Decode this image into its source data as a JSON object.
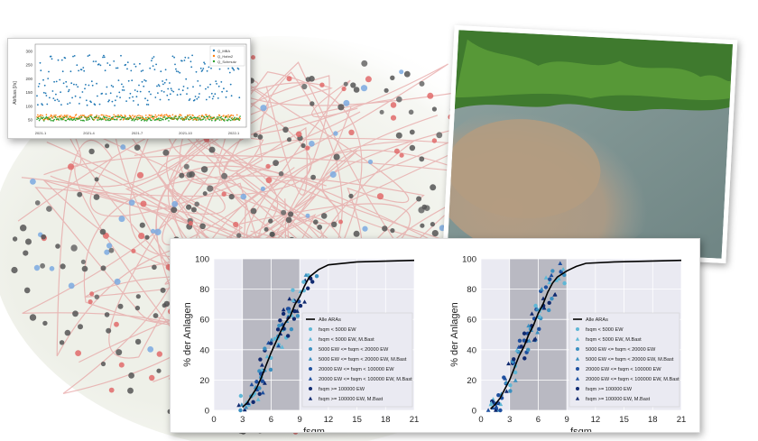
{
  "timeseries": {
    "ylabel": "Abfluss [l/s]",
    "yticks": [
      "300",
      "250",
      "200",
      "150",
      "100",
      "50"
    ],
    "xticks": [
      "2021-1",
      "2021-4",
      "2021-7",
      "2021-10",
      "2022-1"
    ],
    "legend": [
      "Q_MBA",
      "Q_Hahn2",
      "Q_Schmutz"
    ],
    "colors": {
      "series1": "#1f77b4",
      "series2": "#ff7f0e",
      "series3": "#2ca02c"
    }
  },
  "chart_data": [
    {
      "type": "line",
      "xlabel": "fsqm",
      "ylabel": "% der Anlagen",
      "xlim": [
        0,
        21
      ],
      "ylim": [
        0,
        100
      ],
      "xticks": [
        "0",
        "3",
        "6",
        "9",
        "12",
        "15",
        "18",
        "21"
      ],
      "yticks": [
        "0",
        "20",
        "40",
        "60",
        "80",
        "100"
      ],
      "shaded_x": [
        3,
        9
      ],
      "series": [
        {
          "name": "Alle ARAs",
          "x": [
            3,
            3.5,
            4,
            4.5,
            5,
            5.5,
            6,
            6.5,
            7,
            7.5,
            8,
            8.5,
            9,
            9.5,
            10,
            11,
            12,
            15,
            21
          ],
          "y": [
            2,
            5,
            10,
            15,
            22,
            30,
            38,
            45,
            52,
            58,
            62,
            70,
            75,
            82,
            88,
            93,
            96,
            98,
            99
          ]
        }
      ],
      "legend": [
        "Alle ARAs",
        "fsqm < 5000 EW",
        "fsqm < 5000 EW, M.Bast",
        "5000 EW <= fsqm < 20000 EW",
        "5000 EW <= fsqm < 20000 EW, M.Bast",
        "20000 EW <= fsqm < 100000 EW",
        "20000 EW <= fsqm < 100000 EW, M.Bast",
        "fsqm >= 100000 EW",
        "fsqm >= 100000 EW, M.Bast"
      ]
    },
    {
      "type": "line",
      "xlabel": "fsqm",
      "ylabel": "% der Anlagen",
      "xlim": [
        0,
        21
      ],
      "ylim": [
        0,
        100
      ],
      "xticks": [
        "0",
        "3",
        "6",
        "9",
        "12",
        "15",
        "18",
        "21"
      ],
      "yticks": [
        "0",
        "20",
        "40",
        "60",
        "80",
        "100"
      ],
      "shaded_x": [
        3,
        9
      ],
      "series": [
        {
          "name": "Alle ARAs",
          "x": [
            1,
            1.5,
            2,
            2.5,
            3,
            3.5,
            4,
            4.5,
            5,
            5.5,
            6,
            6.5,
            7,
            7.5,
            8,
            9,
            10,
            11,
            14,
            21
          ],
          "y": [
            1,
            4,
            8,
            14,
            20,
            28,
            36,
            42,
            50,
            56,
            64,
            70,
            78,
            84,
            88,
            92,
            95,
            97,
            98,
            99
          ]
        }
      ],
      "legend": [
        "Alle ARAs",
        "fsqm < 5000 EW",
        "fsqm < 5000 EW, M.Bast",
        "5000 EW <= fsqm < 20000 EW",
        "5000 EW <= fsqm < 20000 EW, M.Bast",
        "20000 EW <= fsqm < 100000 EW",
        "20000 EW <= fsqm < 100000 EW, M.Bast",
        "fsqm >= 100000 EW",
        "fsqm >= 100000 EW, M.Bast"
      ]
    }
  ],
  "marker_colors": [
    "#000000",
    "#5fb7d6",
    "#5fb7d6",
    "#3a8fc0",
    "#3a8fc0",
    "#1e4f9e",
    "#1e4f9e",
    "#102a70",
    "#102a70"
  ]
}
